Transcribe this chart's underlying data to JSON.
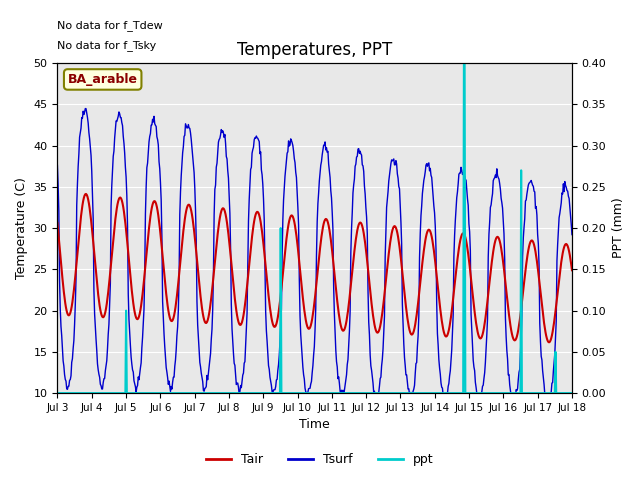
{
  "title": "Temperatures, PPT",
  "xlabel": "Time",
  "ylabel_left": "Temperature (C)",
  "ylabel_right": "PPT (mm)",
  "annotations": [
    "No data for f_Tdew",
    "No data for f_Tsky"
  ],
  "box_label": "BA_arable",
  "ylim_left": [
    10,
    50
  ],
  "ylim_right": [
    0.0,
    0.4
  ],
  "yticks_left": [
    10,
    15,
    20,
    25,
    30,
    35,
    40,
    45,
    50
  ],
  "yticks_right": [
    0.0,
    0.05,
    0.1,
    0.15,
    0.2,
    0.25,
    0.3,
    0.35,
    0.4
  ],
  "xtick_labels": [
    "Jul 3",
    "Jul 4",
    "Jul 5",
    "Jul 6",
    "Jul 7",
    "Jul 8",
    "Jul 9",
    "Jul 10",
    "Jul 11",
    "Jul 12",
    "Jul 13",
    "Jul 14",
    "Jul 15",
    "Jul 16",
    "Jul 17",
    "Jul 18"
  ],
  "bg_color": "#e8e8e8",
  "tair_color": "#cc0000",
  "tsurf_color": "#0000cc",
  "ppt_color": "#00cccc",
  "legend_entries": [
    "Tair",
    "Tsurf",
    "ppt"
  ]
}
